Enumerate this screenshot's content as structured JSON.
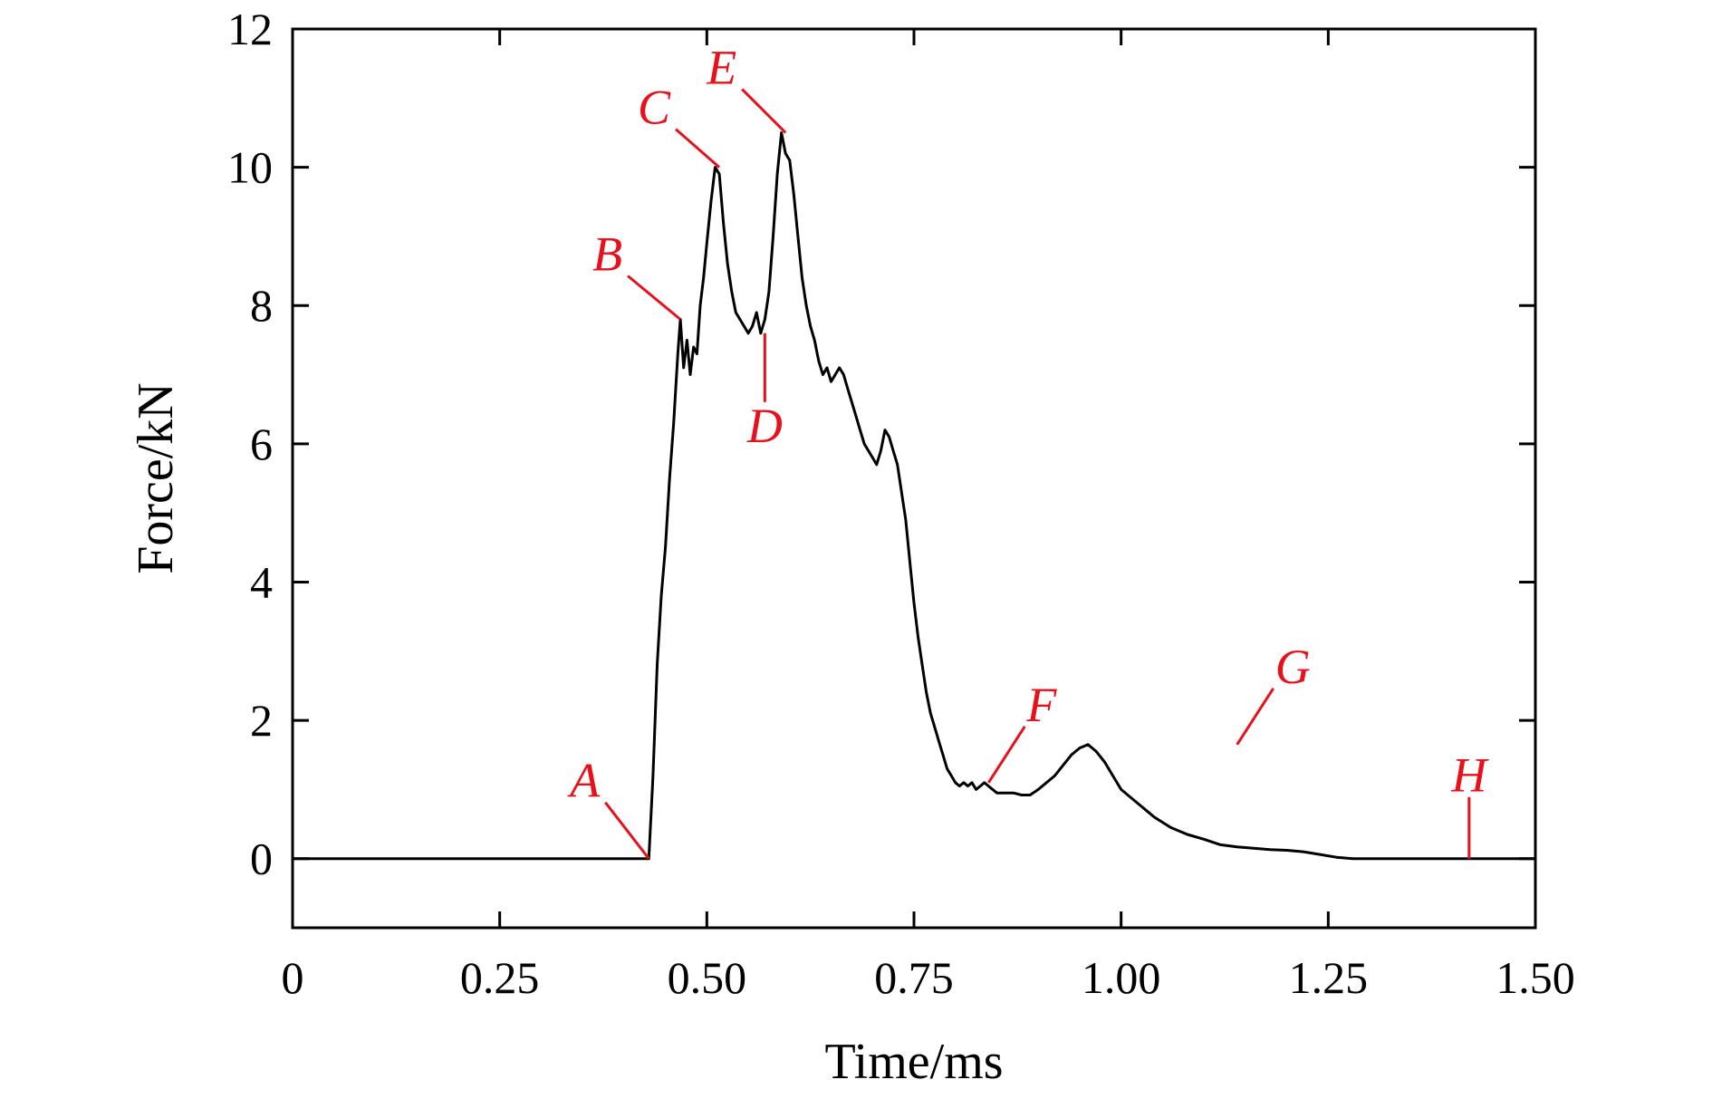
{
  "chart_data": {
    "type": "line",
    "title": "",
    "xlabel": "Time/ms",
    "ylabel": "Force/kN",
    "xlim": [
      0,
      1.5
    ],
    "ylim": [
      -1,
      12
    ],
    "x_ticks": [
      0,
      0.25,
      0.5,
      0.75,
      1.0,
      1.25,
      1.5
    ],
    "x_tick_labels": [
      "0",
      "0.25",
      "0.50",
      "0.75",
      "1.00",
      "1.25",
      "1.50"
    ],
    "y_ticks": [
      0,
      2,
      4,
      6,
      8,
      10,
      12
    ],
    "y_tick_labels": [
      "0",
      "2",
      "4",
      "6",
      "8",
      "10",
      "12"
    ],
    "grid": false,
    "legend": "none",
    "line_color": "#000000",
    "annotation_color": "#e8101a",
    "series": [
      {
        "x": [
          0,
          0.43,
          0.435,
          0.44,
          0.445,
          0.45,
          0.455,
          0.46,
          0.465,
          0.468,
          0.472,
          0.476,
          0.48,
          0.484,
          0.488,
          0.492,
          0.496,
          0.5,
          0.505,
          0.51,
          0.515,
          0.52,
          0.525,
          0.53,
          0.535,
          0.54,
          0.545,
          0.55,
          0.555,
          0.56,
          0.565,
          0.57,
          0.575,
          0.58,
          0.585,
          0.59,
          0.595,
          0.6,
          0.605,
          0.61,
          0.615,
          0.62,
          0.625,
          0.63,
          0.635,
          0.64,
          0.645,
          0.65,
          0.655,
          0.66,
          0.665,
          0.67,
          0.675,
          0.68,
          0.685,
          0.69,
          0.695,
          0.7,
          0.705,
          0.71,
          0.715,
          0.72,
          0.725,
          0.73,
          0.735,
          0.74,
          0.745,
          0.75,
          0.755,
          0.76,
          0.765,
          0.77,
          0.775,
          0.78,
          0.785,
          0.79,
          0.795,
          0.8,
          0.805,
          0.81,
          0.815,
          0.82,
          0.825,
          0.83,
          0.835,
          0.84,
          0.845,
          0.85,
          0.86,
          0.87,
          0.88,
          0.89,
          0.9,
          0.91,
          0.92,
          0.93,
          0.94,
          0.95,
          0.96,
          0.97,
          0.98,
          0.99,
          1.0,
          1.02,
          1.04,
          1.06,
          1.08,
          1.1,
          1.12,
          1.14,
          1.16,
          1.18,
          1.2,
          1.22,
          1.24,
          1.26,
          1.28,
          1.3,
          1.32,
          1.34,
          1.36,
          1.38,
          1.4,
          1.42,
          1.44,
          1.5
        ],
        "y": [
          0,
          0,
          1.2,
          2.8,
          3.8,
          4.5,
          5.5,
          6.3,
          7.3,
          7.8,
          7.1,
          7.5,
          7.0,
          7.4,
          7.3,
          8.0,
          8.4,
          8.9,
          9.5,
          10.0,
          9.9,
          9.2,
          8.6,
          8.2,
          7.9,
          7.8,
          7.7,
          7.6,
          7.7,
          7.9,
          7.6,
          7.8,
          8.2,
          9.0,
          9.9,
          10.5,
          10.2,
          10.1,
          9.6,
          9.0,
          8.4,
          8.0,
          7.7,
          7.5,
          7.2,
          7.0,
          7.1,
          6.9,
          7.0,
          7.1,
          7.0,
          6.8,
          6.6,
          6.4,
          6.2,
          6.0,
          5.9,
          5.8,
          5.7,
          5.9,
          6.2,
          6.1,
          5.9,
          5.7,
          5.3,
          4.9,
          4.3,
          3.7,
          3.2,
          2.8,
          2.4,
          2.1,
          1.9,
          1.7,
          1.5,
          1.3,
          1.2,
          1.1,
          1.05,
          1.1,
          1.05,
          1.1,
          1.0,
          1.05,
          1.1,
          1.05,
          1.0,
          0.95,
          0.95,
          0.95,
          0.92,
          0.92,
          1.0,
          1.1,
          1.2,
          1.35,
          1.5,
          1.6,
          1.65,
          1.55,
          1.4,
          1.2,
          1.0,
          0.8,
          0.6,
          0.45,
          0.35,
          0.28,
          0.2,
          0.17,
          0.15,
          0.13,
          0.12,
          0.1,
          0.06,
          0.02,
          0,
          0,
          0,
          0,
          0,
          0,
          0,
          0,
          0,
          0
        ]
      }
    ],
    "annotations": [
      {
        "label": "A",
        "x": 0.43,
        "y": 0
      },
      {
        "label": "B",
        "x": 0.468,
        "y": 7.8
      },
      {
        "label": "C",
        "x": 0.515,
        "y": 10.0
      },
      {
        "label": "D",
        "x": 0.57,
        "y": 7.6
      },
      {
        "label": "E",
        "x": 0.595,
        "y": 10.5
      },
      {
        "label": "F",
        "x": 0.84,
        "y": 1.1
      },
      {
        "label": "G",
        "x": 1.14,
        "y": 1.65
      },
      {
        "label": "H",
        "x": 1.42,
        "y": 0
      }
    ]
  }
}
